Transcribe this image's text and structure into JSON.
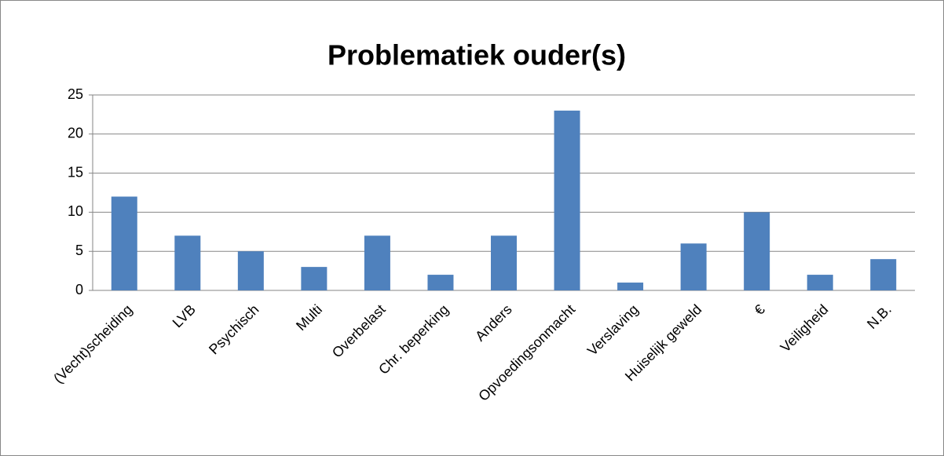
{
  "chart_data": {
    "type": "bar",
    "title": "Problematiek ouder(s)",
    "categories": [
      "(Vecht)scheiding",
      "LVB",
      "Psychisch",
      "Multi",
      "Overbelast",
      "Chr. beperking",
      "Anders",
      "Opvoedingsonmacht",
      "Verslaving",
      "Huiselijk geweld",
      "€",
      "Veiligheid",
      "N.B."
    ],
    "values": [
      12,
      7,
      5,
      3,
      7,
      2,
      7,
      23,
      1,
      6,
      10,
      2,
      4
    ],
    "color": "#4f81bd",
    "ylim": [
      0,
      25
    ],
    "yticks": [
      0,
      5,
      10,
      15,
      20,
      25
    ],
    "grid": true
  }
}
